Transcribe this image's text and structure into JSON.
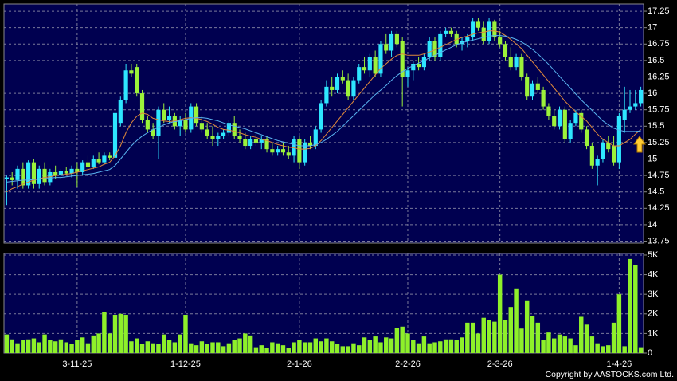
{
  "chart_data": [
    {
      "type": "candlestick",
      "open": [
        14.7,
        14.72,
        14.68,
        14.85,
        14.6,
        14.95,
        14.62,
        14.85,
        14.65,
        14.8,
        14.75,
        14.82,
        14.78,
        14.85,
        14.8,
        14.95,
        14.88,
        15.0,
        14.95,
        15.05,
        15.02,
        15.55,
        15.9,
        16.35,
        16.4,
        16.0,
        15.6,
        15.45,
        15.35,
        15.75,
        15.6,
        15.65,
        15.5,
        15.6,
        15.45,
        15.8,
        15.55,
        15.45,
        15.35,
        15.3,
        15.35,
        15.4,
        15.55,
        15.35,
        15.3,
        15.2,
        15.3,
        15.25,
        15.3,
        15.15,
        15.1,
        15.15,
        15.1,
        15.05,
        15.3,
        14.95,
        15.25,
        15.2,
        15.45,
        15.85,
        16.1,
        16.05,
        16.25,
        16.2,
        15.95,
        16.2,
        16.4,
        16.35,
        16.55,
        16.3,
        16.75,
        16.65,
        16.9,
        16.8,
        16.25,
        16.35,
        16.45,
        16.4,
        16.55,
        16.8,
        16.55,
        16.9,
        16.95,
        16.9,
        16.75,
        16.8,
        16.85,
        17.1,
        17.0,
        16.8,
        17.1,
        16.85,
        16.75,
        16.55,
        16.4,
        16.55,
        16.25,
        15.95,
        16.15,
        16.05,
        15.8,
        15.65,
        15.5,
        15.75,
        15.3,
        15.55,
        15.7,
        15.45,
        15.2,
        14.9,
        15.0,
        15.25,
        15.2,
        14.95,
        15.6,
        15.75,
        15.8,
        15.85
      ],
      "high": [
        14.75,
        14.8,
        14.9,
        14.95,
        14.98,
        15.0,
        14.9,
        14.95,
        14.85,
        14.9,
        14.85,
        14.88,
        14.9,
        14.95,
        14.98,
        15.05,
        15.05,
        15.1,
        15.1,
        15.1,
        15.75,
        15.95,
        16.45,
        16.45,
        16.45,
        16.05,
        15.65,
        15.55,
        15.8,
        15.85,
        15.8,
        15.7,
        15.65,
        15.7,
        15.85,
        15.85,
        15.65,
        15.55,
        15.5,
        15.4,
        15.45,
        15.6,
        15.65,
        15.45,
        15.4,
        15.35,
        15.4,
        15.35,
        15.35,
        15.25,
        15.2,
        15.25,
        15.2,
        15.35,
        15.35,
        15.3,
        15.35,
        15.5,
        15.9,
        16.2,
        16.25,
        16.3,
        16.35,
        16.3,
        16.25,
        16.45,
        16.55,
        16.6,
        16.65,
        16.8,
        16.9,
        16.95,
        16.95,
        16.85,
        16.4,
        16.5,
        16.55,
        16.6,
        16.85,
        16.85,
        16.95,
        17.0,
        17.0,
        16.95,
        16.85,
        16.9,
        17.15,
        17.15,
        17.1,
        17.15,
        17.12,
        16.95,
        16.8,
        16.7,
        16.6,
        16.6,
        16.3,
        16.2,
        16.25,
        16.1,
        15.85,
        15.75,
        15.8,
        15.8,
        15.6,
        15.75,
        15.75,
        15.5,
        15.25,
        15.05,
        15.3,
        15.35,
        15.35,
        15.7,
        16.1,
        16.05,
        16.05,
        16.1
      ],
      "low": [
        14.3,
        14.6,
        14.55,
        14.55,
        14.55,
        14.55,
        14.55,
        14.6,
        14.6,
        14.7,
        14.7,
        14.75,
        14.72,
        14.58,
        14.75,
        14.85,
        14.85,
        14.92,
        14.92,
        14.98,
        15.0,
        15.5,
        15.85,
        16.25,
        15.95,
        15.55,
        15.4,
        15.3,
        15.0,
        15.55,
        15.55,
        15.45,
        15.35,
        15.4,
        15.4,
        15.5,
        15.4,
        15.3,
        15.2,
        15.2,
        15.3,
        15.35,
        15.3,
        15.25,
        15.15,
        15.15,
        15.2,
        15.15,
        15.1,
        15.05,
        15.05,
        15.05,
        15.0,
        14.95,
        14.85,
        14.9,
        15.15,
        15.15,
        15.4,
        15.8,
        15.95,
        16.0,
        16.15,
        15.9,
        15.9,
        16.15,
        16.3,
        16.25,
        16.25,
        16.25,
        16.6,
        16.55,
        16.7,
        15.8,
        16.1,
        16.2,
        16.35,
        16.35,
        16.5,
        16.5,
        16.5,
        16.85,
        16.85,
        16.7,
        16.65,
        16.7,
        16.8,
        16.95,
        16.75,
        16.75,
        16.8,
        16.7,
        16.5,
        16.35,
        16.35,
        16.2,
        15.9,
        15.9,
        16.0,
        15.75,
        15.6,
        15.45,
        15.45,
        15.25,
        15.25,
        15.5,
        15.4,
        15.15,
        14.85,
        14.6,
        14.95,
        15.1,
        14.9,
        14.85,
        15.4,
        15.7,
        15.75,
        15.8
      ],
      "close": [
        14.72,
        14.68,
        14.85,
        14.6,
        14.95,
        14.62,
        14.85,
        14.65,
        14.8,
        14.75,
        14.82,
        14.78,
        14.85,
        14.8,
        14.95,
        14.88,
        15.0,
        14.95,
        15.05,
        15.02,
        15.7,
        15.9,
        16.35,
        16.3,
        16.0,
        15.6,
        15.45,
        15.35,
        15.75,
        15.6,
        15.65,
        15.5,
        15.6,
        15.45,
        15.8,
        15.55,
        15.45,
        15.35,
        15.3,
        15.35,
        15.4,
        15.55,
        15.35,
        15.3,
        15.2,
        15.3,
        15.25,
        15.3,
        15.15,
        15.1,
        15.15,
        15.1,
        15.05,
        15.3,
        14.95,
        15.25,
        15.2,
        15.45,
        15.85,
        16.1,
        16.05,
        16.25,
        16.2,
        15.95,
        16.2,
        16.4,
        16.35,
        16.55,
        16.3,
        16.75,
        16.65,
        16.9,
        16.75,
        16.25,
        16.35,
        16.45,
        16.4,
        16.55,
        16.8,
        16.55,
        16.9,
        16.95,
        16.9,
        16.75,
        16.8,
        16.85,
        17.1,
        17.0,
        16.8,
        17.1,
        16.85,
        16.75,
        16.55,
        16.4,
        16.55,
        16.25,
        15.95,
        16.15,
        16.05,
        15.8,
        15.65,
        15.5,
        15.75,
        15.3,
        15.55,
        15.7,
        15.45,
        15.2,
        14.9,
        15.0,
        15.25,
        15.15,
        14.95,
        15.65,
        15.75,
        15.8,
        15.85,
        16.05
      ],
      "up_color": "#2ee6ff",
      "down_color": "#9cf23a",
      "series": [
        {
          "color": "#e0893a",
          "values": [
            14.5,
            14.55,
            14.58,
            14.62,
            14.65,
            14.68,
            14.7,
            14.72,
            14.73,
            14.75,
            14.76,
            14.77,
            14.78,
            14.8,
            14.82,
            14.84,
            14.86,
            14.88,
            14.92,
            14.95,
            15.05,
            15.2,
            15.4,
            15.55,
            15.65,
            15.7,
            15.68,
            15.62,
            15.6,
            15.58,
            15.57,
            15.58,
            15.6,
            15.62,
            15.63,
            15.62,
            15.6,
            15.57,
            15.53,
            15.48,
            15.45,
            15.44,
            15.42,
            15.4,
            15.37,
            15.35,
            15.33,
            15.3,
            15.28,
            15.25,
            15.22,
            15.2,
            15.18,
            15.17,
            15.15,
            15.15,
            15.16,
            15.2,
            15.28,
            15.38,
            15.48,
            15.58,
            15.68,
            15.78,
            15.88,
            15.98,
            16.08,
            16.18,
            16.28,
            16.38,
            16.45,
            16.52,
            16.58,
            16.6,
            16.58,
            16.58,
            16.58,
            16.6,
            16.63,
            16.66,
            16.7,
            16.74,
            16.78,
            16.82,
            16.85,
            16.87,
            16.9,
            16.92,
            16.93,
            16.95,
            16.95,
            16.93,
            16.88,
            16.82,
            16.75,
            16.68,
            16.58,
            16.48,
            16.38,
            16.28,
            16.18,
            16.08,
            15.98,
            15.88,
            15.8,
            15.72,
            15.65,
            15.58,
            15.48,
            15.38,
            15.3,
            15.25,
            15.2,
            15.2,
            15.25,
            15.3,
            15.38,
            15.45
          ]
        },
        {
          "color": "#5ab4f0",
          "values": [
            14.65,
            14.66,
            14.67,
            14.68,
            14.68,
            14.69,
            14.7,
            14.7,
            14.71,
            14.72,
            14.72,
            14.73,
            14.74,
            14.75,
            14.76,
            14.77,
            14.78,
            14.8,
            14.82,
            14.84,
            14.9,
            15.0,
            15.1,
            15.2,
            15.28,
            15.35,
            15.4,
            15.45,
            15.48,
            15.52,
            15.55,
            15.57,
            15.58,
            15.6,
            15.62,
            15.63,
            15.63,
            15.62,
            15.6,
            15.58,
            15.55,
            15.52,
            15.5,
            15.48,
            15.46,
            15.43,
            15.4,
            15.37,
            15.34,
            15.31,
            15.28,
            15.26,
            15.24,
            15.22,
            15.2,
            15.2,
            15.2,
            15.22,
            15.25,
            15.3,
            15.36,
            15.42,
            15.5,
            15.58,
            15.66,
            15.74,
            15.82,
            15.9,
            15.98,
            16.05,
            16.12,
            16.2,
            16.27,
            16.33,
            16.38,
            16.42,
            16.46,
            16.5,
            16.54,
            16.58,
            16.62,
            16.66,
            16.7,
            16.74,
            16.77,
            16.79,
            16.81,
            16.83,
            16.85,
            16.87,
            16.88,
            16.88,
            16.87,
            16.85,
            16.82,
            16.78,
            16.73,
            16.67,
            16.6,
            16.52,
            16.44,
            16.35,
            16.26,
            16.17,
            16.08,
            15.99,
            15.9,
            15.82,
            15.74,
            15.66,
            15.58,
            15.52,
            15.47,
            15.44,
            15.42,
            15.42,
            15.42,
            15.43
          ]
        }
      ],
      "ylim": [
        13.72,
        17.36
      ],
      "yticks": [
        13.75,
        14,
        14.25,
        14.5,
        14.75,
        15,
        15.25,
        15.5,
        15.75,
        16,
        16.25,
        16.5,
        16.75,
        17,
        17.25
      ],
      "grid": true
    },
    {
      "type": "bar",
      "categories": [
        null,
        null,
        null,
        null,
        null,
        null,
        null,
        null,
        null,
        null,
        null,
        null,
        null,
        "3-11-25",
        null,
        null,
        null,
        null,
        null,
        null,
        null,
        null,
        null,
        null,
        null,
        null,
        null,
        null,
        null,
        null,
        null,
        null,
        null,
        "1-12-25",
        null,
        null,
        null,
        null,
        null,
        null,
        null,
        null,
        null,
        null,
        null,
        null,
        null,
        null,
        null,
        null,
        null,
        null,
        null,
        null,
        "2-1-26",
        null,
        null,
        null,
        null,
        null,
        null,
        null,
        null,
        null,
        null,
        null,
        null,
        null,
        null,
        null,
        null,
        null,
        null,
        null,
        "2-2-26",
        null,
        null,
        null,
        null,
        null,
        null,
        null,
        null,
        null,
        null,
        null,
        null,
        null,
        null,
        null,
        null,
        "2-3-26",
        null,
        null,
        null,
        null,
        null,
        null,
        null,
        null,
        null,
        null,
        null,
        null,
        null,
        null,
        null,
        null,
        null,
        null,
        null,
        null,
        null,
        "1-4-26",
        null,
        null,
        null,
        null
      ],
      "values": [
        950,
        700,
        500,
        650,
        700,
        750,
        550,
        950,
        650,
        600,
        700,
        550,
        450,
        650,
        800,
        500,
        900,
        1000,
        2100,
        1000,
        1950,
        2000,
        1950,
        600,
        750,
        450,
        600,
        500,
        450,
        950,
        650,
        550,
        950,
        1950,
        500,
        400,
        600,
        450,
        550,
        550,
        350,
        500,
        650,
        750,
        1000,
        900,
        300,
        400,
        250,
        550,
        500,
        400,
        250,
        550,
        650,
        550,
        550,
        750,
        600,
        750,
        600,
        450,
        350,
        350,
        500,
        400,
        800,
        650,
        850,
        550,
        800,
        750,
        1300,
        1350,
        1000,
        650,
        500,
        850,
        500,
        550,
        600,
        700,
        700,
        650,
        800,
        1550,
        1550,
        1000,
        1800,
        1700,
        1600,
        4000,
        1700,
        2350,
        3300,
        1250,
        2650,
        1900,
        1550,
        650,
        1050,
        750,
        950,
        850,
        750,
        400,
        1850,
        1450,
        850,
        500,
        350,
        400,
        1550,
        3000,
        350,
        4800,
        4500,
        300
      ],
      "color": "#8ef02a",
      "ylim": [
        0,
        5080
      ],
      "yticks": [
        0,
        {
          "value": 1000,
          "label": "1K"
        },
        {
          "value": 2000,
          "label": "2K"
        },
        {
          "value": 3000,
          "label": "3K"
        },
        {
          "value": 4000,
          "label": "4K"
        },
        {
          "value": 5000,
          "label": "5K"
        }
      ],
      "grid": true
    }
  ],
  "copyright": "Copyright by AASTOCKS.com Ltd."
}
